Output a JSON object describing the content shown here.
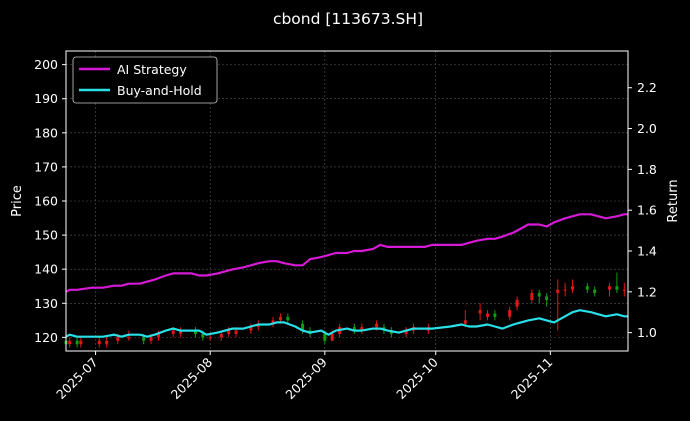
{
  "chart_data": {
    "type": "line",
    "title": "cbond [113673.SH]",
    "ylabel_left": "Price",
    "ylabel_right": "Return",
    "xlim": [
      "2025-06-23",
      "2025-11-22"
    ],
    "ylim_left": [
      116,
      204
    ],
    "ylim_right": [
      0.91,
      2.38
    ],
    "x_ticks": [
      "2025-07-01",
      "2025-08-01",
      "2025-09-01",
      "2025-10-01",
      "2025-11-01"
    ],
    "x_tick_labels": [
      "2025-07",
      "2025-08",
      "2025-09",
      "2025-10",
      "2025-11"
    ],
    "y_ticks_left": [
      120,
      130,
      140,
      150,
      160,
      170,
      180,
      190,
      200
    ],
    "y_ticks_right": [
      1.0,
      1.2,
      1.4,
      1.6,
      1.8,
      2.0,
      2.2
    ],
    "grid": true,
    "legend_position": "top-left",
    "colors": {
      "background": "#000000",
      "ai_strategy": "#d61ad6",
      "buy_hold": "#29e0e8",
      "candle_up": "#e01818",
      "candle_down": "#109e10",
      "grid": "#555555",
      "text": "#ffffff"
    },
    "series": [
      {
        "name": "AI Strategy",
        "axis": "right",
        "x": [
          "2025-06-23",
          "2025-06-24",
          "2025-06-26",
          "2025-06-30",
          "2025-07-03",
          "2025-07-06",
          "2025-07-08",
          "2025-07-10",
          "2025-07-13",
          "2025-07-15",
          "2025-07-17",
          "2025-07-20",
          "2025-07-22",
          "2025-07-24",
          "2025-07-27",
          "2025-07-29",
          "2025-07-31",
          "2025-08-03",
          "2025-08-05",
          "2025-08-07",
          "2025-08-10",
          "2025-08-12",
          "2025-08-14",
          "2025-08-17",
          "2025-08-19",
          "2025-08-21",
          "2025-08-24",
          "2025-08-26",
          "2025-08-28",
          "2025-08-31",
          "2025-09-02",
          "2025-09-04",
          "2025-09-07",
          "2025-09-09",
          "2025-09-11",
          "2025-09-14",
          "2025-09-16",
          "2025-09-18",
          "2025-09-21",
          "2025-09-23",
          "2025-09-25",
          "2025-09-28",
          "2025-09-30",
          "2025-10-05",
          "2025-10-08",
          "2025-10-10",
          "2025-10-12",
          "2025-10-15",
          "2025-10-17",
          "2025-10-19",
          "2025-10-22",
          "2025-10-24",
          "2025-10-26",
          "2025-10-29",
          "2025-10-31",
          "2025-11-02",
          "2025-11-05",
          "2025-11-07",
          "2025-11-09",
          "2025-11-12",
          "2025-11-14",
          "2025-11-16",
          "2025-11-19",
          "2025-11-21",
          "2025-11-22"
        ],
        "values": [
          1.2,
          1.21,
          1.21,
          1.22,
          1.22,
          1.23,
          1.23,
          1.24,
          1.24,
          1.25,
          1.26,
          1.28,
          1.29,
          1.29,
          1.29,
          1.28,
          1.28,
          1.29,
          1.3,
          1.31,
          1.32,
          1.33,
          1.34,
          1.35,
          1.35,
          1.34,
          1.33,
          1.33,
          1.36,
          1.37,
          1.38,
          1.39,
          1.39,
          1.4,
          1.4,
          1.41,
          1.43,
          1.42,
          1.42,
          1.42,
          1.42,
          1.42,
          1.43,
          1.43,
          1.43,
          1.44,
          1.45,
          1.46,
          1.46,
          1.47,
          1.49,
          1.51,
          1.53,
          1.53,
          1.52,
          1.54,
          1.56,
          1.57,
          1.58,
          1.58,
          1.57,
          1.56,
          1.57,
          1.58,
          1.58
        ]
      },
      {
        "name": "Buy-and-Hold",
        "axis": "right",
        "x": [
          "2025-06-23",
          "2025-06-24",
          "2025-06-26",
          "2025-06-30",
          "2025-07-03",
          "2025-07-06",
          "2025-07-08",
          "2025-07-10",
          "2025-07-13",
          "2025-07-15",
          "2025-07-17",
          "2025-07-20",
          "2025-07-22",
          "2025-07-24",
          "2025-07-27",
          "2025-07-29",
          "2025-07-31",
          "2025-08-03",
          "2025-08-05",
          "2025-08-07",
          "2025-08-10",
          "2025-08-12",
          "2025-08-14",
          "2025-08-17",
          "2025-08-19",
          "2025-08-21",
          "2025-08-24",
          "2025-08-26",
          "2025-08-28",
          "2025-08-31",
          "2025-09-02",
          "2025-09-04",
          "2025-09-07",
          "2025-09-09",
          "2025-09-11",
          "2025-09-14",
          "2025-09-16",
          "2025-09-18",
          "2025-09-21",
          "2025-09-23",
          "2025-09-25",
          "2025-09-28",
          "2025-09-30",
          "2025-10-05",
          "2025-10-08",
          "2025-10-10",
          "2025-10-12",
          "2025-10-15",
          "2025-10-17",
          "2025-10-19",
          "2025-10-22",
          "2025-10-24",
          "2025-10-26",
          "2025-10-29",
          "2025-10-31",
          "2025-11-02",
          "2025-11-05",
          "2025-11-07",
          "2025-11-09",
          "2025-11-12",
          "2025-11-14",
          "2025-11-16",
          "2025-11-19",
          "2025-11-21",
          "2025-11-22"
        ],
        "values": [
          0.98,
          0.99,
          0.98,
          0.98,
          0.98,
          0.99,
          0.98,
          0.99,
          0.99,
          0.98,
          0.99,
          1.01,
          1.02,
          1.01,
          1.01,
          1.01,
          0.99,
          1.0,
          1.01,
          1.02,
          1.02,
          1.03,
          1.04,
          1.04,
          1.05,
          1.05,
          1.03,
          1.01,
          1.0,
          1.01,
          0.99,
          1.01,
          1.02,
          1.01,
          1.01,
          1.02,
          1.02,
          1.01,
          1.0,
          1.01,
          1.02,
          1.02,
          1.02,
          1.03,
          1.04,
          1.03,
          1.03,
          1.04,
          1.03,
          1.02,
          1.04,
          1.05,
          1.06,
          1.07,
          1.06,
          1.05,
          1.08,
          1.1,
          1.11,
          1.1,
          1.09,
          1.08,
          1.09,
          1.08,
          1.08
        ]
      },
      {
        "name": "Price",
        "type": "candlestick",
        "axis": "left",
        "x": [
          "2025-06-23",
          "2025-06-24",
          "2025-06-26",
          "2025-06-27",
          "2025-07-02",
          "2025-07-04",
          "2025-07-07",
          "2025-07-10",
          "2025-07-14",
          "2025-07-16",
          "2025-07-18",
          "2025-07-22",
          "2025-07-24",
          "2025-07-28",
          "2025-07-30",
          "2025-08-01",
          "2025-08-04",
          "2025-08-06",
          "2025-08-08",
          "2025-08-12",
          "2025-08-14",
          "2025-08-18",
          "2025-08-20",
          "2025-08-22",
          "2025-08-26",
          "2025-08-28",
          "2025-09-01",
          "2025-09-03",
          "2025-09-05",
          "2025-09-09",
          "2025-09-11",
          "2025-09-15",
          "2025-09-17",
          "2025-09-19",
          "2025-09-23",
          "2025-09-25",
          "2025-09-29",
          "2025-10-09",
          "2025-10-13",
          "2025-10-15",
          "2025-10-17",
          "2025-10-21",
          "2025-10-23",
          "2025-10-27",
          "2025-10-29",
          "2025-10-31",
          "2025-11-03",
          "2025-11-05",
          "2025-11-07",
          "2025-11-11",
          "2025-11-13",
          "2025-11-17",
          "2025-11-19",
          "2025-11-21"
        ],
        "open": [
          119,
          118,
          119,
          118,
          118,
          118,
          119,
          120,
          120,
          119,
          120,
          121,
          121,
          122,
          121,
          120,
          120,
          121,
          121,
          122,
          123,
          124,
          125,
          126,
          124,
          122,
          121,
          119,
          121,
          123,
          122,
          123,
          123,
          122,
          121,
          122,
          122,
          124,
          127,
          126,
          127,
          126,
          129,
          131,
          133,
          132,
          133,
          134,
          134,
          135,
          134,
          134,
          135,
          134
        ],
        "close": [
          118,
          119,
          118,
          119,
          119,
          119,
          120,
          120,
          119,
          120,
          121,
          122,
          122,
          121,
          120,
          120,
          121,
          122,
          122,
          123,
          124,
          125,
          126,
          125,
          122,
          121,
          119,
          121,
          123,
          122,
          123,
          124,
          122,
          121,
          122,
          123,
          123,
          125,
          128,
          127,
          126,
          128,
          131,
          133,
          132,
          131,
          134,
          134,
          135,
          134,
          133,
          135,
          134,
          134
        ],
        "high": [
          121,
          120,
          120,
          120,
          120,
          120,
          121,
          122,
          121,
          121,
          122,
          123,
          123,
          123,
          122,
          121,
          122,
          123,
          123,
          124,
          125,
          126,
          127,
          127,
          125,
          123,
          122,
          122,
          124,
          124,
          124,
          125,
          124,
          123,
          123,
          124,
          124,
          128,
          130,
          128,
          128,
          129,
          132,
          134,
          134,
          133,
          137,
          136,
          137,
          136,
          135,
          136,
          139,
          136
        ],
        "low": [
          117,
          117,
          117,
          117,
          117,
          117,
          118,
          119,
          118,
          118,
          119,
          120,
          120,
          120,
          119,
          119,
          119,
          120,
          120,
          121,
          122,
          123,
          124,
          124,
          121,
          120,
          118,
          119,
          120,
          121,
          121,
          122,
          121,
          120,
          120,
          121,
          121,
          123,
          125,
          125,
          125,
          125,
          128,
          130,
          130,
          129,
          122,
          132,
          133,
          133,
          132,
          132,
          133,
          132
        ]
      }
    ]
  }
}
